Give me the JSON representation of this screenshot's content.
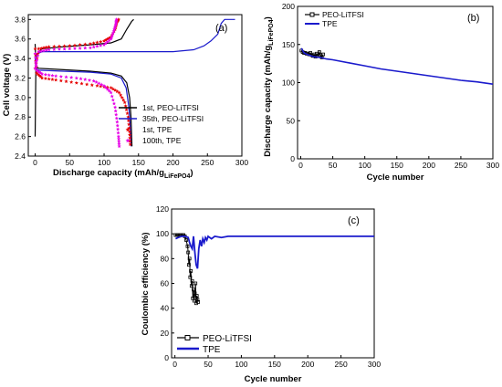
{
  "chart_data": [
    {
      "panel": "(a)",
      "type": "line",
      "xlabel": "Discharge capacity (mAh/g",
      "xlabel_sub": "LiFePO4",
      "xlabel_end": ")",
      "ylabel": "Cell voltage (V)",
      "xlim": [
        -10,
        300
      ],
      "ylim": [
        2.4,
        3.85
      ],
      "xticks": [
        0,
        50,
        100,
        150,
        200,
        250,
        300
      ],
      "yticks": [
        2.4,
        2.6,
        2.8,
        3.0,
        3.2,
        3.4,
        3.6,
        3.8
      ],
      "legend_position": "bottom-right",
      "series": [
        {
          "name": "1st, PEO-LiTFSI",
          "color": "#000000",
          "style": "line",
          "charge": [
            [
              0,
              2.6
            ],
            [
              1,
              3.3
            ],
            [
              3,
              3.45
            ],
            [
              10,
              3.5
            ],
            [
              40,
              3.52
            ],
            [
              80,
              3.54
            ],
            [
              110,
              3.56
            ],
            [
              125,
              3.6
            ],
            [
              133,
              3.7
            ],
            [
              140,
              3.78
            ],
            [
              143,
              3.8
            ]
          ],
          "discharge": [
            [
              0,
              3.55
            ],
            [
              1,
              3.32
            ],
            [
              5,
              3.3
            ],
            [
              30,
              3.29
            ],
            [
              80,
              3.27
            ],
            [
              110,
              3.25
            ],
            [
              125,
              3.22
            ],
            [
              133,
              3.15
            ],
            [
              137,
              3.0
            ],
            [
              139,
              2.8
            ],
            [
              140,
              2.6
            ],
            [
              140.5,
              2.5
            ]
          ]
        },
        {
          "name": "35th, PEO-LiTFSI",
          "color": "#1a1acc",
          "style": "line",
          "charge": [
            [
              0,
              3.35
            ],
            [
              1,
              3.44
            ],
            [
              10,
              3.47
            ],
            [
              50,
              3.47
            ],
            [
              100,
              3.47
            ],
            [
              150,
              3.47
            ],
            [
              200,
              3.47
            ],
            [
              230,
              3.49
            ],
            [
              245,
              3.53
            ],
            [
              255,
              3.58
            ],
            [
              265,
              3.65
            ],
            [
              270,
              3.76
            ],
            [
              275,
              3.8
            ],
            [
              290,
              3.8
            ]
          ],
          "discharge": [
            [
              0,
              3.42
            ],
            [
              1,
              3.3
            ],
            [
              5,
              3.28
            ],
            [
              40,
              3.27
            ],
            [
              80,
              3.26
            ],
            [
              110,
              3.24
            ],
            [
              125,
              3.2
            ],
            [
              132,
              3.1
            ],
            [
              136,
              2.9
            ],
            [
              138,
              2.7
            ],
            [
              139,
              2.5
            ]
          ]
        },
        {
          "name": "1st, TPE",
          "color": "#e60000",
          "style": "stars",
          "charge": [
            [
              0,
              3.3
            ],
            [
              5,
              3.5
            ],
            [
              20,
              3.52
            ],
            [
              50,
              3.53
            ],
            [
              80,
              3.55
            ],
            [
              100,
              3.58
            ],
            [
              110,
              3.62
            ],
            [
              116,
              3.7
            ],
            [
              119,
              3.78
            ],
            [
              121,
              3.8
            ]
          ],
          "discharge": [
            [
              0,
              3.5
            ],
            [
              2,
              3.25
            ],
            [
              10,
              3.2
            ],
            [
              30,
              3.18
            ],
            [
              60,
              3.15
            ],
            [
              90,
              3.12
            ],
            [
              110,
              3.1
            ],
            [
              122,
              3.05
            ],
            [
              130,
              2.95
            ],
            [
              135,
              2.8
            ],
            [
              137,
              2.65
            ],
            [
              138,
              2.52
            ]
          ]
        },
        {
          "name": "100th, TPE",
          "color": "#e600e6",
          "style": "stars",
          "charge": [
            [
              0,
              3.3
            ],
            [
              5,
              3.47
            ],
            [
              20,
              3.49
            ],
            [
              50,
              3.5
            ],
            [
              80,
              3.51
            ],
            [
              100,
              3.54
            ],
            [
              110,
              3.6
            ],
            [
              114,
              3.68
            ],
            [
              117,
              3.75
            ],
            [
              118,
              3.8
            ]
          ],
          "discharge": [
            [
              0,
              3.45
            ],
            [
              2,
              3.28
            ],
            [
              10,
              3.24
            ],
            [
              30,
              3.22
            ],
            [
              60,
              3.2
            ],
            [
              85,
              3.17
            ],
            [
              100,
              3.12
            ],
            [
              110,
              3.05
            ],
            [
              116,
              2.9
            ],
            [
              119,
              2.75
            ],
            [
              121,
              2.6
            ],
            [
              122,
              2.5
            ]
          ]
        }
      ]
    },
    {
      "panel": "(b)",
      "type": "line",
      "xlabel": "Cycle number",
      "ylabel": "Discharge capacity (mAh/g",
      "ylabel_sub": "LiFePO4",
      "ylabel_end": ")",
      "xlim": [
        -5,
        300
      ],
      "ylim": [
        0,
        200
      ],
      "xticks": [
        0,
        50,
        100,
        150,
        200,
        250,
        300
      ],
      "yticks": [
        0,
        50,
        100,
        150,
        200
      ],
      "legend_position": "top-left",
      "series": [
        {
          "name": "PEO-LiTFSI",
          "color": "#000000",
          "style": "line-square",
          "x": [
            1,
            3,
            5,
            7,
            9,
            11,
            13,
            15,
            17,
            19,
            21,
            23,
            25,
            27,
            29,
            31,
            33,
            35
          ],
          "y": [
            142,
            140,
            139,
            139,
            138,
            138,
            137,
            139,
            136,
            135,
            137,
            134,
            138,
            135,
            140,
            136,
            133,
            137
          ]
        },
        {
          "name": "TPE",
          "color": "#1a1acc",
          "style": "line",
          "x": [
            1,
            5,
            10,
            20,
            30,
            40,
            50,
            75,
            100,
            125,
            150,
            175,
            200,
            225,
            250,
            275,
            300
          ],
          "y": [
            145,
            139,
            137,
            134,
            133,
            131,
            130,
            126,
            122,
            118,
            115,
            112,
            109,
            106,
            103,
            101,
            98
          ]
        }
      ]
    },
    {
      "panel": "(c)",
      "type": "line",
      "xlabel": "Cycle number",
      "ylabel": "Coulombic efficiency (%)",
      "xlim": [
        -5,
        300
      ],
      "ylim": [
        0,
        120
      ],
      "xticks": [
        0,
        50,
        100,
        150,
        200,
        250,
        300
      ],
      "yticks": [
        0,
        20,
        40,
        60,
        80,
        100,
        120
      ],
      "legend_position": "bottom-left",
      "series": [
        {
          "name": "PEO-LiTFSI",
          "color": "#000000",
          "style": "line-square",
          "x": [
            1,
            3,
            5,
            7,
            9,
            11,
            13,
            15,
            17,
            19,
            20,
            21,
            22,
            23,
            24,
            25,
            26,
            27,
            28,
            29,
            30,
            31,
            32,
            33,
            34,
            35
          ],
          "y": [
            99,
            99,
            99,
            99,
            99,
            99,
            99,
            98,
            95,
            90,
            85,
            75,
            80,
            65,
            70,
            58,
            62,
            48,
            55,
            46,
            52,
            60,
            44,
            50,
            47,
            45
          ]
        },
        {
          "name": "TPE",
          "color": "#1a1acc",
          "style": "line",
          "x": [
            1,
            5,
            10,
            15,
            20,
            22,
            24,
            26,
            28,
            30,
            32,
            34,
            36,
            38,
            40,
            42,
            44,
            46,
            48,
            50,
            55,
            60,
            70,
            80,
            100,
            150,
            200,
            250,
            300
          ],
          "y": [
            96,
            97,
            98,
            98,
            97,
            93,
            90,
            88,
            98,
            85,
            75,
            72,
            88,
            95,
            90,
            96,
            93,
            97,
            95,
            98,
            96,
            98,
            97,
            98,
            98,
            98,
            98,
            98,
            98
          ]
        }
      ]
    }
  ]
}
